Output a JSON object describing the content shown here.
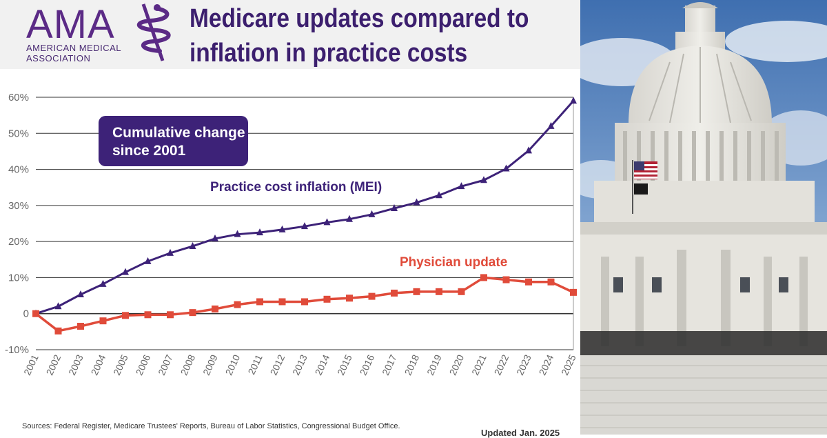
{
  "header": {
    "logo_letters": "AMA",
    "logo_line1": "AMERICAN MEDICAL",
    "logo_line2": "ASSOCIATION",
    "title_line1": "Medicare updates compared to",
    "title_line2": "inflation in practice costs"
  },
  "footer": {
    "sources": "Sources: Federal Register, Medicare Trustees' Reports, Bureau of Labor Statistics, Congressional Budget Office.",
    "updated": "Updated Jan. 2025"
  },
  "photo": {
    "subject": "US Capitol dome with American flag"
  },
  "colors": {
    "mei": "#3d2278",
    "physician": "#e04b3a",
    "badge": "#3d2278",
    "grid": "#333333"
  },
  "chart_data": {
    "type": "line",
    "annotation": [
      "Cumulative change",
      "since 2001"
    ],
    "x": [
      "2001",
      "2002",
      "2003",
      "2004",
      "2005",
      "2006",
      "2007",
      "2008",
      "2009",
      "2010",
      "2011",
      "2012",
      "2013",
      "2014",
      "2015",
      "2016",
      "2017",
      "2018",
      "2019",
      "2020",
      "2021",
      "2022",
      "2023",
      "2024",
      "2025"
    ],
    "yticks": [
      -10,
      0,
      10,
      20,
      30,
      40,
      50,
      60
    ],
    "ytick_labels": [
      "-10%",
      "0",
      "10%",
      "20%",
      "30%",
      "40%",
      "50%",
      "60%"
    ],
    "ylim": [
      -10,
      60
    ],
    "grid": true,
    "series": [
      {
        "name": "Practice cost inflation (MEI)",
        "color": "#3d2278",
        "marker": "triangle",
        "values": [
          0,
          2,
          5.3,
          8.2,
          11.5,
          14.5,
          16.8,
          18.7,
          20.8,
          22.0,
          22.5,
          23.3,
          24.2,
          25.3,
          26.2,
          27.5,
          29.2,
          30.8,
          32.8,
          35.3,
          37.0,
          40.2,
          45.2,
          52.0,
          59.0
        ]
      },
      {
        "name": "Physician update",
        "color": "#e04b3a",
        "marker": "square",
        "values": [
          0,
          -4.8,
          -3.5,
          -2.0,
          -0.5,
          -0.3,
          -0.3,
          0.3,
          1.3,
          2.5,
          3.3,
          3.3,
          3.3,
          4.0,
          4.3,
          4.8,
          5.7,
          6.1,
          6.1,
          6.1,
          10.0,
          9.4,
          8.8,
          8.8,
          5.9
        ]
      }
    ]
  }
}
